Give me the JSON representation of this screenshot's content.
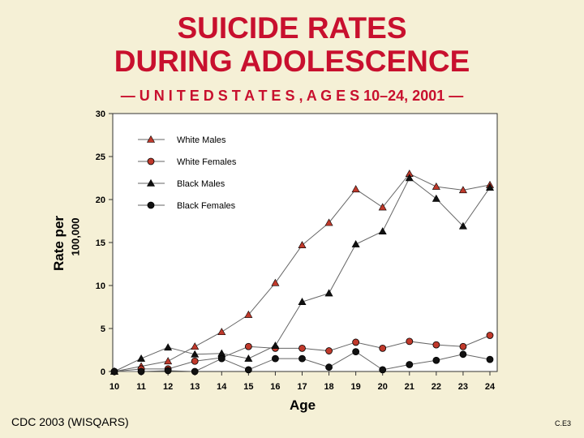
{
  "slide": {
    "title_line1": "SUICIDE RATES",
    "title_line2": "DURING ADOLESCENCE",
    "subtitle": "— U N I T E D   S T A T E S ,   A G E S  10–24, 2001 —",
    "ylabel_line1": "Rate per",
    "ylabel_line2": "100,000",
    "source": "CDC 2003 (WISQARS)",
    "slide_code": "C.E3"
  },
  "chart_data": {
    "type": "line",
    "title": "",
    "xlabel": "Age",
    "ylabel": "Rate per 100,000",
    "x": [
      10,
      11,
      12,
      13,
      14,
      15,
      16,
      17,
      18,
      19,
      20,
      21,
      22,
      23,
      24
    ],
    "xlim": [
      10,
      24
    ],
    "ylim": [
      0,
      30
    ],
    "yticks": [
      0,
      5,
      10,
      15,
      20,
      25,
      30
    ],
    "grid": false,
    "legend": "top-left",
    "series": [
      {
        "name": "White Males",
        "color": "#c0392b",
        "marker": "triangle",
        "values": [
          0,
          0.6,
          1.2,
          2.9,
          4.6,
          6.6,
          10.3,
          14.7,
          17.3,
          21.2,
          19.1,
          23.0,
          21.5,
          21.1,
          21.7
        ]
      },
      {
        "name": "White Females",
        "color": "#c0392b",
        "marker": "circle",
        "values": [
          0,
          0.3,
          0.3,
          1.2,
          1.6,
          2.9,
          2.7,
          2.7,
          2.4,
          3.4,
          2.7,
          3.5,
          3.1,
          2.9,
          4.2
        ]
      },
      {
        "name": "Black Males",
        "color": "#111111",
        "marker": "triangle",
        "values": [
          0,
          1.5,
          2.8,
          2.0,
          2.1,
          1.5,
          3.0,
          8.1,
          9.1,
          14.8,
          16.3,
          22.5,
          20.1,
          16.9,
          21.4
        ]
      },
      {
        "name": "Black Females",
        "color": "#111111",
        "marker": "circle",
        "values": [
          0,
          0,
          0.1,
          0,
          1.5,
          0.2,
          1.5,
          1.5,
          0.5,
          2.3,
          0.2,
          0.8,
          1.3,
          2.0,
          1.4
        ]
      }
    ]
  }
}
